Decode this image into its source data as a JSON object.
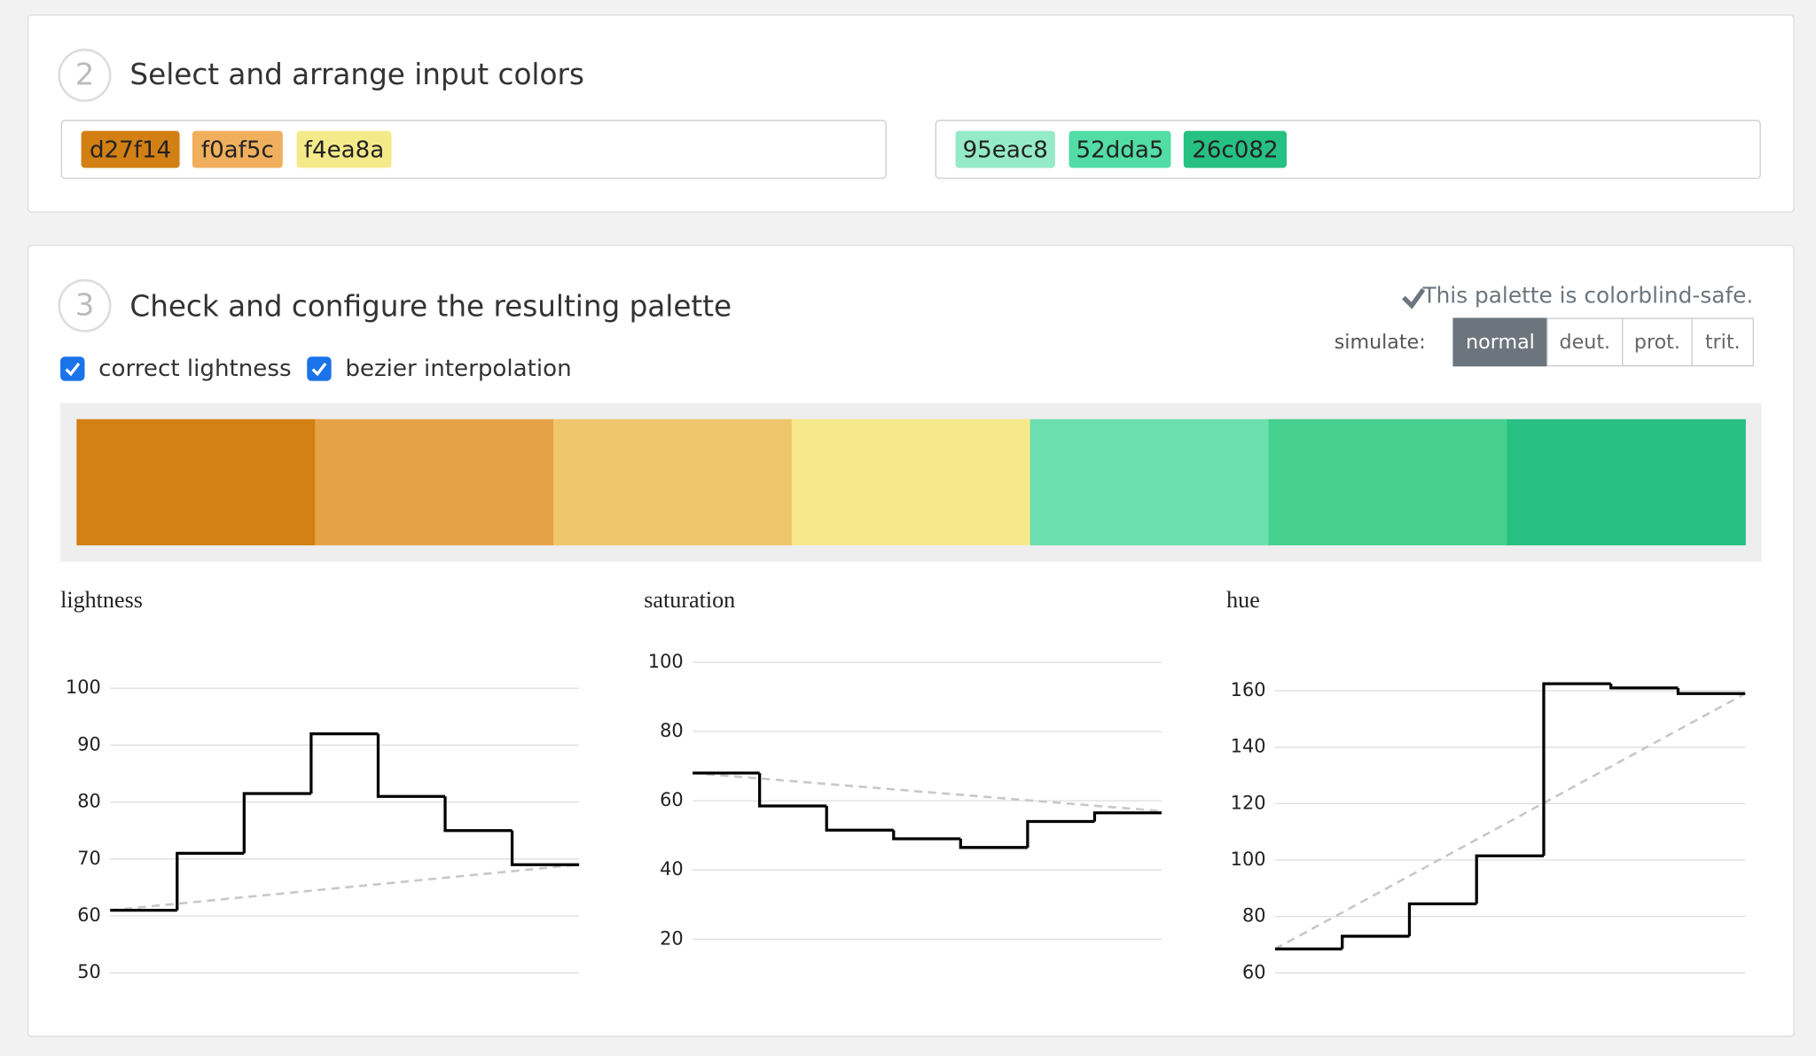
{
  "step2": {
    "number": "2",
    "title": "Select and arrange input colors",
    "inputs": [
      [
        {
          "label": "d27f14",
          "color": "#d27f14"
        },
        {
          "label": "f0af5c",
          "color": "#f0af5c"
        },
        {
          "label": "f4ea8a",
          "color": "#f4ea8a"
        }
      ],
      [
        {
          "label": "95eac8",
          "color": "#95eac8"
        },
        {
          "label": "52dda5",
          "color": "#52dda5"
        },
        {
          "label": "26c082",
          "color": "#26c082"
        }
      ]
    ]
  },
  "step3": {
    "number": "3",
    "title": "Check and configure the resulting palette",
    "options": [
      "correct lightness",
      "bezier interpolation"
    ],
    "status": "This palette is colorblind-safe.",
    "simulate_label": "simulate:",
    "simulate_options": [
      "normal",
      "deut.",
      "prot.",
      "trit."
    ],
    "palette": [
      "#d38015",
      "#e5a247",
      "#f0c66c",
      "#f5e98c",
      "#6cdfae",
      "#46d08f",
      "#28c083"
    ],
    "charts": [
      {
        "type": "line",
        "title": "lightness",
        "ylim": [
          48,
          107
        ],
        "yticks": [
          50,
          60,
          70,
          80,
          90,
          100
        ],
        "values": [
          61,
          71,
          81.5,
          92,
          81,
          75,
          69
        ],
        "reference": [
          61,
          69
        ]
      },
      {
        "type": "line",
        "title": "saturation",
        "ylim": [
          7,
          104
        ],
        "yticks": [
          20,
          40,
          60,
          80,
          100
        ],
        "values": [
          68,
          58.5,
          51.5,
          49,
          46.5,
          54,
          56.5
        ],
        "reference": [
          68,
          57
        ]
      },
      {
        "type": "line",
        "title": "hue",
        "ylim": [
          56,
          175
        ],
        "yticks": [
          60,
          80,
          100,
          120,
          140,
          160
        ],
        "values": [
          68.5,
          73,
          84.5,
          101.5,
          162.5,
          161,
          159
        ],
        "reference": [
          68.5,
          159
        ]
      }
    ]
  }
}
